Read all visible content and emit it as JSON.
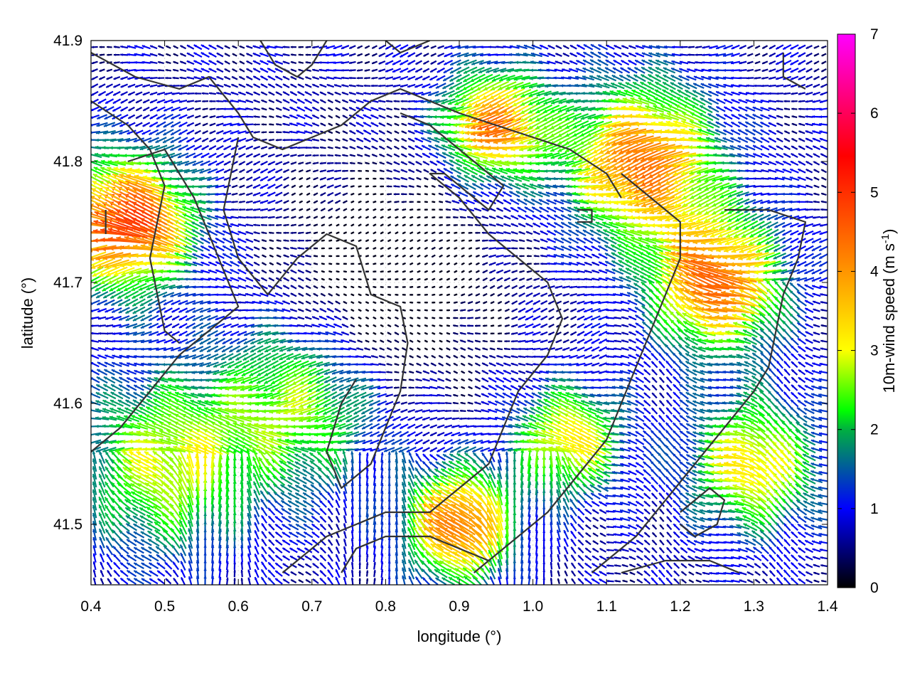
{
  "chart_data": {
    "type": "quiver",
    "xlabel": "longitude (°)",
    "ylabel": "latitude (°)",
    "xlim": [
      0.4,
      1.4
    ],
    "ylim": [
      41.45,
      41.9
    ],
    "x_ticks": [
      "0.4",
      "0.5",
      "0.6",
      "0.7",
      "0.8",
      "0.9",
      "1.0",
      "1.1",
      "1.2",
      "1.3",
      "1.4"
    ],
    "y_ticks": [
      "41.5",
      "41.6",
      "41.7",
      "41.8",
      "41.9"
    ],
    "grid": true,
    "colorbar": {
      "label_main": "10m-wind speed (m s",
      "label_sup": "-1",
      "label_close": ")",
      "range": [
        0,
        7
      ],
      "ticks": [
        "0",
        "1",
        "2",
        "3",
        "4",
        "5",
        "6",
        "7"
      ],
      "colormap": [
        "#000000",
        "#0000ff",
        "#00ff00",
        "#ffff00",
        "#ff8000",
        "#ff0000",
        "#ff00ff"
      ]
    },
    "contour_color": "#333333",
    "contours": [
      [
        [
          0.4,
          41.89
        ],
        [
          0.46,
          41.87
        ],
        [
          0.52,
          41.86
        ],
        [
          0.56,
          41.87
        ],
        [
          0.6,
          41.84
        ],
        [
          0.62,
          41.82
        ],
        [
          0.66,
          41.81
        ],
        [
          0.7,
          41.82
        ],
        [
          0.74,
          41.83
        ],
        [
          0.78,
          41.85
        ],
        [
          0.82,
          41.86
        ],
        [
          0.86,
          41.85
        ],
        [
          0.9,
          41.84
        ],
        [
          0.95,
          41.83
        ],
        [
          1.0,
          41.82
        ],
        [
          1.05,
          41.81
        ],
        [
          1.1,
          41.79
        ],
        [
          1.12,
          41.77
        ]
      ],
      [
        [
          0.4,
          41.85
        ],
        [
          0.45,
          41.83
        ],
        [
          0.48,
          41.81
        ],
        [
          0.5,
          41.78
        ],
        [
          0.48,
          41.72
        ],
        [
          0.5,
          41.66
        ],
        [
          0.52,
          41.65
        ]
      ],
      [
        [
          0.6,
          41.82
        ],
        [
          0.58,
          41.76
        ],
        [
          0.6,
          41.72
        ],
        [
          0.64,
          41.69
        ],
        [
          0.68,
          41.72
        ],
        [
          0.72,
          41.74
        ],
        [
          0.76,
          41.73
        ],
        [
          0.78,
          41.69
        ],
        [
          0.82,
          41.68
        ],
        [
          0.83,
          41.65
        ],
        [
          0.82,
          41.61
        ],
        [
          0.8,
          41.58
        ],
        [
          0.78,
          41.55
        ],
        [
          0.74,
          41.53
        ],
        [
          0.72,
          41.56
        ],
        [
          0.74,
          41.6
        ],
        [
          0.76,
          41.62
        ]
      ],
      [
        [
          0.45,
          41.8
        ],
        [
          0.5,
          41.81
        ],
        [
          0.52,
          41.79
        ],
        [
          0.54,
          41.77
        ],
        [
          0.56,
          41.74
        ],
        [
          0.58,
          41.71
        ],
        [
          0.6,
          41.68
        ],
        [
          0.56,
          41.66
        ],
        [
          0.52,
          41.64
        ],
        [
          0.48,
          41.61
        ],
        [
          0.44,
          41.58
        ],
        [
          0.4,
          41.56
        ]
      ],
      [
        [
          0.82,
          41.84
        ],
        [
          0.86,
          41.83
        ],
        [
          0.9,
          41.81
        ],
        [
          0.94,
          41.79
        ],
        [
          0.96,
          41.78
        ],
        [
          0.94,
          41.76
        ],
        [
          0.92,
          41.77
        ],
        [
          0.9,
          41.78
        ],
        [
          0.88,
          41.79
        ],
        [
          0.86,
          41.79
        ],
        [
          0.9,
          41.77
        ],
        [
          0.94,
          41.74
        ],
        [
          0.98,
          41.72
        ],
        [
          1.02,
          41.7
        ],
        [
          1.04,
          41.67
        ],
        [
          1.02,
          41.64
        ],
        [
          0.98,
          41.61
        ],
        [
          0.96,
          41.58
        ],
        [
          0.94,
          41.55
        ],
        [
          0.9,
          41.53
        ],
        [
          0.86,
          41.51
        ],
        [
          0.8,
          41.51
        ],
        [
          0.76,
          41.5
        ],
        [
          0.72,
          41.49
        ],
        [
          0.68,
          41.47
        ],
        [
          0.66,
          41.46
        ]
      ],
      [
        [
          1.12,
          41.79
        ],
        [
          1.16,
          41.77
        ],
        [
          1.2,
          41.75
        ],
        [
          1.2,
          41.72
        ],
        [
          1.18,
          41.69
        ],
        [
          1.16,
          41.66
        ],
        [
          1.14,
          41.63
        ],
        [
          1.12,
          41.6
        ],
        [
          1.1,
          41.57
        ],
        [
          1.06,
          41.54
        ],
        [
          1.02,
          41.51
        ],
        [
          0.98,
          41.49
        ],
        [
          0.94,
          41.47
        ],
        [
          0.92,
          41.46
        ]
      ],
      [
        [
          1.26,
          41.76
        ],
        [
          1.32,
          41.76
        ],
        [
          1.37,
          41.75
        ],
        [
          1.36,
          41.72
        ],
        [
          1.34,
          41.69
        ],
        [
          1.33,
          41.66
        ],
        [
          1.32,
          41.63
        ],
        [
          1.3,
          41.61
        ],
        [
          1.26,
          41.58
        ],
        [
          1.22,
          41.55
        ],
        [
          1.18,
          41.52
        ],
        [
          1.14,
          41.49
        ],
        [
          1.1,
          41.47
        ],
        [
          1.08,
          41.46
        ]
      ],
      [
        [
          1.2,
          41.51
        ],
        [
          1.22,
          41.52
        ],
        [
          1.24,
          41.53
        ],
        [
          1.26,
          41.52
        ],
        [
          1.25,
          41.5
        ],
        [
          1.22,
          41.49
        ],
        [
          1.2,
          41.5
        ]
      ],
      [
        [
          1.06,
          41.76
        ],
        [
          1.08,
          41.76
        ],
        [
          1.08,
          41.75
        ],
        [
          1.06,
          41.75
        ]
      ],
      [
        [
          0.74,
          41.46
        ],
        [
          0.76,
          41.48
        ],
        [
          0.8,
          41.49
        ],
        [
          0.86,
          41.49
        ],
        [
          0.9,
          41.48
        ],
        [
          0.94,
          41.47
        ]
      ],
      [
        [
          1.12,
          41.46
        ],
        [
          1.18,
          41.47
        ],
        [
          1.24,
          41.47
        ],
        [
          1.28,
          41.46
        ]
      ],
      [
        [
          1.34,
          41.89
        ],
        [
          1.34,
          41.87
        ],
        [
          1.37,
          41.86
        ]
      ],
      [
        [
          0.63,
          41.9
        ],
        [
          0.65,
          41.88
        ],
        [
          0.68,
          41.87
        ],
        [
          0.7,
          41.88
        ],
        [
          0.72,
          41.9
        ]
      ],
      [
        [
          0.8,
          41.9
        ],
        [
          0.82,
          41.89
        ],
        [
          0.86,
          41.9
        ]
      ],
      [
        [
          0.42,
          41.76
        ],
        [
          0.42,
          41.74
        ]
      ]
    ]
  }
}
